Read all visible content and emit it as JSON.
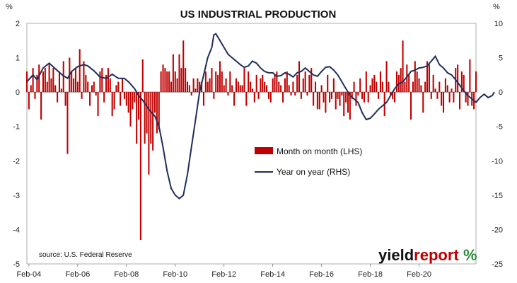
{
  "chart_data": {
    "type": "bar+line",
    "title": "US INDUSTRIAL PRODUCTION",
    "left_unit": "%",
    "right_unit": "%",
    "ylim_left": [
      -5,
      2
    ],
    "ylim_right": [
      -25,
      10
    ],
    "yticks_left": [
      2,
      1,
      0,
      -1,
      -2,
      -3,
      -4,
      -5
    ],
    "yticks_right": [
      10,
      5,
      0,
      -5,
      -10,
      -15,
      -20,
      -25
    ],
    "x_tick_labels": [
      "Feb-04",
      "Feb-06",
      "Feb-08",
      "Feb-10",
      "Feb-12",
      "Feb-14",
      "Feb-16",
      "Feb-18",
      "Feb-20"
    ],
    "x_start": "2004-01",
    "series": [
      {
        "name": "Month on month (LHS)",
        "type": "bar",
        "axis": "left",
        "color": "#c00000",
        "values": [
          0.6,
          -0.5,
          0.2,
          0.7,
          -0.2,
          0.5,
          0.8,
          -0.8,
          0.6,
          0.7,
          0.3,
          0.8,
          0.4,
          0.7,
          0.2,
          -0.3,
          0.6,
          0.1,
          0.9,
          -0.4,
          -1.8,
          1.0,
          0.6,
          0.4,
          0.7,
          0.3,
          1.25,
          -0.2,
          0.9,
          0.5,
          0.3,
          -0.4,
          0.2,
          0.3,
          -0.1,
          -0.7,
          0.6,
          0.7,
          -0.3,
          0.5,
          0.7,
          0.4,
          -0.7,
          -0.5,
          0.2,
          0.3,
          -0.4,
          0.4,
          -0.2,
          -0.4,
          -0.6,
          -1.0,
          -0.5,
          -0.3,
          -1.5,
          -0.8,
          -4.3,
          0.95,
          -1.5,
          -1.2,
          -2.4,
          -1.5,
          -1.7,
          -0.6,
          -1.2,
          -1.1,
          0.6,
          0.8,
          0.7,
          0.6,
          0.6,
          0.3,
          1.1,
          0.6,
          0.4,
          1.1,
          0.7,
          1.5,
          0.7,
          0.3,
          0.2,
          -0.1,
          0.4,
          0.1,
          0.4,
          0.3,
          0.3,
          -0.4,
          0.6,
          0.3,
          0.4,
          0.7,
          -0.2,
          0.6,
          0.5,
          0.9,
          0.6,
          0.2,
          0.4,
          -0.1,
          0.6,
          0.2,
          -0.4,
          0.4,
          0.3,
          0.2,
          0.2,
          0.7,
          -0.4,
          0.6,
          0.3,
          0.1,
          -0.3,
          0.5,
          -0.2,
          0.4,
          0.5,
          0.3,
          0.2,
          -0.2,
          -0.3,
          0.4,
          0.5,
          0.6,
          0.3,
          0.2,
          -0.3,
          0.4,
          0.6,
          0.2,
          -0.1,
          0.3,
          -0.1,
          0.5,
          0.9,
          -0.2,
          0.4,
          0.6,
          -0.1,
          0.5,
          0.7,
          -0.4,
          0.3,
          -0.5,
          -0.5,
          0.2,
          -0.3,
          -0.6,
          0.5,
          -0.3,
          -0.2,
          0.4,
          -0.5,
          -0.2,
          -0.4,
          -0.1,
          -0.7,
          -0.3,
          -0.6,
          -0.8,
          -0.2,
          0.3,
          -0.4,
          -0.1,
          0.4,
          -0.2,
          -0.3,
          0.6,
          -0.3,
          0.2,
          0.4,
          0.5,
          0.3,
          -0.2,
          0.6,
          0.3,
          -0.7,
          0.9,
          0.3,
          -0.1,
          -0.2,
          -0.3,
          0.6,
          0.5,
          0.7,
          1.5,
          0.3,
          0.8,
          0.5,
          -0.8,
          0.3,
          0.9,
          0.6,
          0.4,
          0.2,
          -0.6,
          0.3,
          0.9,
          0.8,
          -0.2,
          0.5,
          0.1,
          -0.2,
          0.3,
          -0.4,
          -0.6,
          0.4,
          0.2,
          -0.3,
          0.1,
          -0.3,
          0.7,
          0.8,
          -0.5,
          0.6,
          0.5,
          -0.3,
          -0.4,
          0.95,
          -0.4,
          -0.5,
          0.6
        ]
      },
      {
        "name": "Year on year (RHS)",
        "type": "line",
        "axis": "right",
        "color": "#1f2d5a",
        "points": [
          [
            0,
            1.5
          ],
          [
            3,
            2.5
          ],
          [
            5,
            1.8
          ],
          [
            8,
            3.5
          ],
          [
            11,
            4.2
          ],
          [
            14,
            3.4
          ],
          [
            17,
            2.6
          ],
          [
            20,
            2.0
          ],
          [
            22,
            3.0
          ],
          [
            25,
            3.7
          ],
          [
            28,
            4.0
          ],
          [
            30,
            3.8
          ],
          [
            33,
            3.1
          ],
          [
            36,
            2.2
          ],
          [
            39,
            2.0
          ],
          [
            42,
            2.6
          ],
          [
            45,
            2.0
          ],
          [
            48,
            2.0
          ],
          [
            50,
            1.5
          ],
          [
            53,
            0.5
          ],
          [
            55,
            -0.5
          ],
          [
            57,
            -1.2
          ],
          [
            60,
            -2.5
          ],
          [
            63,
            -3.5
          ],
          [
            65,
            -5.0
          ],
          [
            67,
            -8.0
          ],
          [
            69,
            -11.5
          ],
          [
            71,
            -14.0
          ],
          [
            73,
            -15.0
          ],
          [
            75,
            -15.5
          ],
          [
            77,
            -15.0
          ],
          [
            79,
            -12.0
          ],
          [
            81,
            -8.0
          ],
          [
            83,
            -4.0
          ],
          [
            85,
            0.0
          ],
          [
            87,
            2.5
          ],
          [
            89,
            5.0
          ],
          [
            91,
            6.5
          ],
          [
            92,
            8.3
          ],
          [
            93,
            8.5
          ],
          [
            95,
            7.5
          ],
          [
            97,
            6.5
          ],
          [
            99,
            5.5
          ],
          [
            101,
            5.0
          ],
          [
            103,
            4.5
          ],
          [
            105,
            4.0
          ],
          [
            107,
            3.6
          ],
          [
            109,
            3.8
          ],
          [
            111,
            4.5
          ],
          [
            113,
            4.2
          ],
          [
            115,
            3.5
          ],
          [
            117,
            3.0
          ],
          [
            119,
            2.8
          ],
          [
            121,
            2.8
          ],
          [
            123,
            2.3
          ],
          [
            125,
            2.4
          ],
          [
            127,
            2.8
          ],
          [
            129,
            2.6
          ],
          [
            131,
            2.2
          ],
          [
            133,
            2.8
          ],
          [
            135,
            3.0
          ],
          [
            137,
            3.5
          ],
          [
            139,
            3.0
          ],
          [
            141,
            2.5
          ],
          [
            143,
            2.3
          ],
          [
            145,
            3.0
          ],
          [
            147,
            3.6
          ],
          [
            149,
            3.7
          ],
          [
            151,
            3.2
          ],
          [
            153,
            2.5
          ],
          [
            155,
            1.5
          ],
          [
            157,
            0.5
          ],
          [
            159,
            -0.5
          ],
          [
            161,
            -1.0
          ],
          [
            163,
            -1.5
          ],
          [
            165,
            -3.0
          ],
          [
            167,
            -4.0
          ],
          [
            169,
            -3.8
          ],
          [
            171,
            -3.2
          ],
          [
            173,
            -2.5
          ],
          [
            175,
            -2.0
          ],
          [
            177,
            -1.5
          ],
          [
            179,
            -0.5
          ],
          [
            181,
            0.5
          ],
          [
            183,
            1.2
          ],
          [
            185,
            1.5
          ],
          [
            187,
            2.2
          ],
          [
            189,
            3.0
          ],
          [
            191,
            3.2
          ],
          [
            193,
            3.5
          ],
          [
            195,
            3.6
          ],
          [
            197,
            3.8
          ],
          [
            199,
            4.5
          ],
          [
            201,
            5.2
          ],
          [
            203,
            4.0
          ],
          [
            205,
            3.5
          ],
          [
            207,
            2.8
          ],
          [
            209,
            2.5
          ],
          [
            211,
            1.8
          ],
          [
            213,
            1.0
          ],
          [
            215,
            0.2
          ],
          [
            217,
            -0.5
          ],
          [
            219,
            -1.0
          ],
          [
            221,
            -1.5
          ],
          [
            223,
            -0.8
          ],
          [
            225,
            -0.3
          ],
          [
            227,
            -0.8
          ],
          [
            229,
            -0.5
          ],
          [
            230,
            0.0
          ]
        ]
      }
    ],
    "source": "source: U.S. Federal Reserve",
    "logo": {
      "word1": "yield",
      "word2": "report",
      "pct": "%"
    }
  }
}
